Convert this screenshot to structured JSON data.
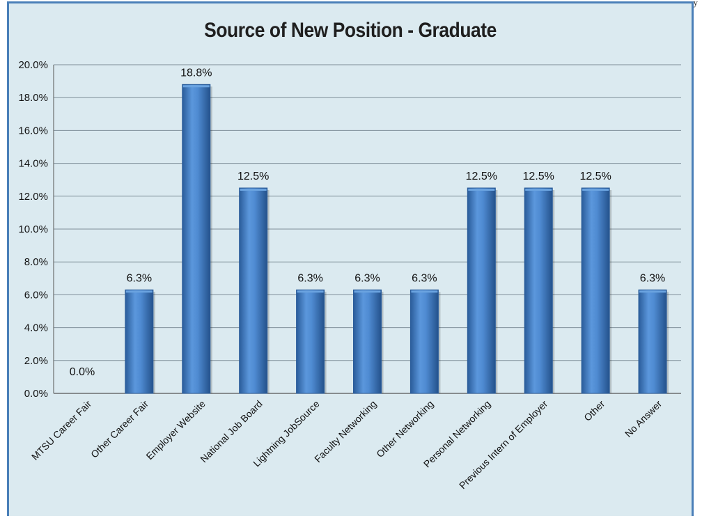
{
  "corner_mark": "y",
  "chart_data": {
    "type": "bar",
    "title": "Source of New Position - Graduate",
    "xlabel": "",
    "ylabel": "",
    "ylim": [
      0,
      20
    ],
    "ytick_step": 2,
    "ytick_format": "percent_1dp",
    "grid": true,
    "categories": [
      "MTSU Career Fair",
      "Other Career Fair",
      "Employer Website",
      "National Job Board",
      "Lightning JobSource",
      "Faculty Networking",
      "Other Networking",
      "Personal Networking",
      "Previous Intern of Employer",
      "Other",
      "No Answer"
    ],
    "values": [
      0.0,
      6.3,
      18.8,
      12.5,
      6.3,
      6.3,
      6.3,
      12.5,
      12.5,
      12.5,
      6.3
    ],
    "data_labels": [
      "0.0%",
      "6.3%",
      "18.8%",
      "12.5%",
      "6.3%",
      "6.3%",
      "6.3%",
      "12.5%",
      "12.5%",
      "12.5%",
      "6.3%"
    ],
    "colors": {
      "bar": "#3f7fc9",
      "bar_dark": "#2a5c9a",
      "bar_light": "#6aa3e0",
      "background": "#dbeaf0",
      "grid": "#7f8f99",
      "frame": "#4a7fb8"
    }
  }
}
